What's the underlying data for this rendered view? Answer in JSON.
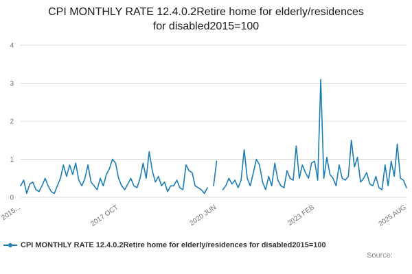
{
  "title": "CPI MONTHLY RATE 12.4.0.2Retire home for elderly/residences for disabled2015=100",
  "legend": {
    "label": "CPI MONTHLY RATE 12.4.0.2Retire home for elderly/residences for disabled2015=100"
  },
  "source": {
    "label": "Source:"
  },
  "chart_data": {
    "type": "line",
    "title": "CPI MONTHLY RATE 12.4.0.2Retire home for elderly/residences for disabled2015=100",
    "xlabel": "",
    "ylabel": "",
    "ylim": [
      0,
      4
    ],
    "yticks": [
      0,
      1,
      2,
      3,
      4
    ],
    "grid": true,
    "legend_position": "bottom",
    "line_color": "#1a7db6",
    "grid_color": "#d8d8d8",
    "tick_label_color": "#6e6e6e",
    "frequency": "monthly",
    "start_month": "2015-02",
    "end_month": "2025-08",
    "xticks": [
      {
        "label": "2015...",
        "index": 0
      },
      {
        "label": "2017 OCT",
        "index": 32
      },
      {
        "label": "2020 JUN",
        "index": 64
      },
      {
        "label": "2023 FEB",
        "index": 96
      },
      {
        "label": "2025 AUG",
        "index": 126
      }
    ],
    "values": [
      0.3,
      0.45,
      0.1,
      0.35,
      0.4,
      0.2,
      0.15,
      0.3,
      0.5,
      0.3,
      0.15,
      0.1,
      0.3,
      0.5,
      0.85,
      0.55,
      0.85,
      0.6,
      0.9,
      0.45,
      0.3,
      0.5,
      0.85,
      0.4,
      0.3,
      0.2,
      0.5,
      0.3,
      0.6,
      0.75,
      1.0,
      0.9,
      0.5,
      0.3,
      0.2,
      0.35,
      0.5,
      0.3,
      0.25,
      0.5,
      0.9,
      0.5,
      1.2,
      0.7,
      0.4,
      0.55,
      0.3,
      0.4,
      0.15,
      0.3,
      0.3,
      0.45,
      0.25,
      0.2,
      0.85,
      0.7,
      0.65,
      0.3,
      0.25,
      0.2,
      0.1,
      0.25,
      null,
      0.3,
      0.95,
      null,
      0.2,
      0.3,
      0.5,
      0.35,
      0.45,
      0.25,
      0.45,
      1.25,
      0.5,
      0.3,
      0.65,
      1.0,
      0.85,
      0.4,
      0.2,
      0.55,
      0.3,
      0.9,
      0.45,
      0.3,
      0.25,
      0.7,
      0.5,
      0.45,
      1.35,
      0.5,
      0.85,
      0.65,
      0.5,
      0.9,
      0.95,
      0.45,
      3.1,
      0.5,
      1.05,
      0.6,
      0.5,
      0.3,
      0.85,
      0.5,
      0.45,
      0.55,
      1.5,
      0.8,
      1.05,
      0.4,
      0.5,
      0.65,
      0.35,
      0.3,
      0.55,
      0.25,
      0.2,
      0.85,
      0.3,
      0.95,
      0.55,
      1.4,
      0.5,
      0.45,
      0.25
    ]
  }
}
